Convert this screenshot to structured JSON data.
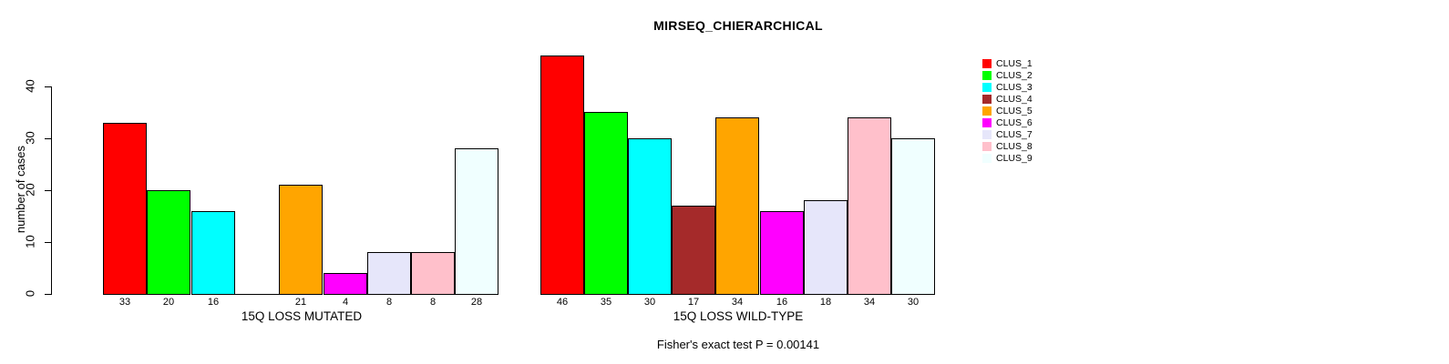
{
  "title": "MIRSEQ_CHIERARCHICAL",
  "footer": "Fisher's exact test P = 0.00141",
  "y_axis": {
    "label": "number of cases",
    "tick_labels": [
      "0",
      "10",
      "20",
      "30",
      "40"
    ]
  },
  "legend": {
    "position": "right",
    "items": [
      {
        "label": "CLUS_1",
        "color": "#FF0000"
      },
      {
        "label": "CLUS_2",
        "color": "#00FF00"
      },
      {
        "label": "CLUS_3",
        "color": "#00FFFF"
      },
      {
        "label": "CLUS_4",
        "color": "#A52A2A"
      },
      {
        "label": "CLUS_5",
        "color": "#FFA500"
      },
      {
        "label": "CLUS_6",
        "color": "#FF00FF"
      },
      {
        "label": "CLUS_7",
        "color": "#E6E6FA"
      },
      {
        "label": "CLUS_8",
        "color": "#FFC0CB"
      },
      {
        "label": "CLUS_9",
        "color": "#F0FFFF"
      }
    ]
  },
  "chart_data": [
    {
      "type": "bar",
      "title": "MIRSEQ_CHIERARCHICAL",
      "xlabel": "15Q LOSS MUTATED",
      "ylabel": "number of cases",
      "categories": [
        "CLUS_1",
        "CLUS_2",
        "CLUS_3",
        "CLUS_4",
        "CLUS_5",
        "CLUS_6",
        "CLUS_7",
        "CLUS_8",
        "CLUS_9"
      ],
      "values": [
        33,
        20,
        16,
        0,
        21,
        4,
        8,
        8,
        28
      ],
      "bar_labels": [
        "33",
        "20",
        "16",
        "",
        "21",
        "4",
        "8",
        "8",
        "28"
      ],
      "colors": [
        "#FF0000",
        "#00FF00",
        "#00FFFF",
        "#A52A2A",
        "#FFA500",
        "#FF00FF",
        "#E6E6FA",
        "#FFC0CB",
        "#F0FFFF"
      ],
      "ylim": [
        0,
        40
      ],
      "yticks": [
        0,
        10,
        20,
        30,
        40
      ],
      "grid": false,
      "legend_position": "right"
    },
    {
      "type": "bar",
      "xlabel": "15Q LOSS WILD-TYPE",
      "categories": [
        "CLUS_1",
        "CLUS_2",
        "CLUS_3",
        "CLUS_4",
        "CLUS_5",
        "CLUS_6",
        "CLUS_7",
        "CLUS_8",
        "CLUS_9"
      ],
      "values": [
        46,
        35,
        30,
        17,
        34,
        16,
        18,
        34,
        30
      ],
      "bar_labels": [
        "46",
        "35",
        "30",
        "17",
        "34",
        "16",
        "18",
        "34",
        "30"
      ],
      "colors": [
        "#FF0000",
        "#00FF00",
        "#00FFFF",
        "#A52A2A",
        "#FFA500",
        "#FF00FF",
        "#E6E6FA",
        "#FFC0CB",
        "#F0FFFF"
      ],
      "ylim": [
        0,
        40
      ],
      "yticks": [],
      "grid": false
    }
  ]
}
